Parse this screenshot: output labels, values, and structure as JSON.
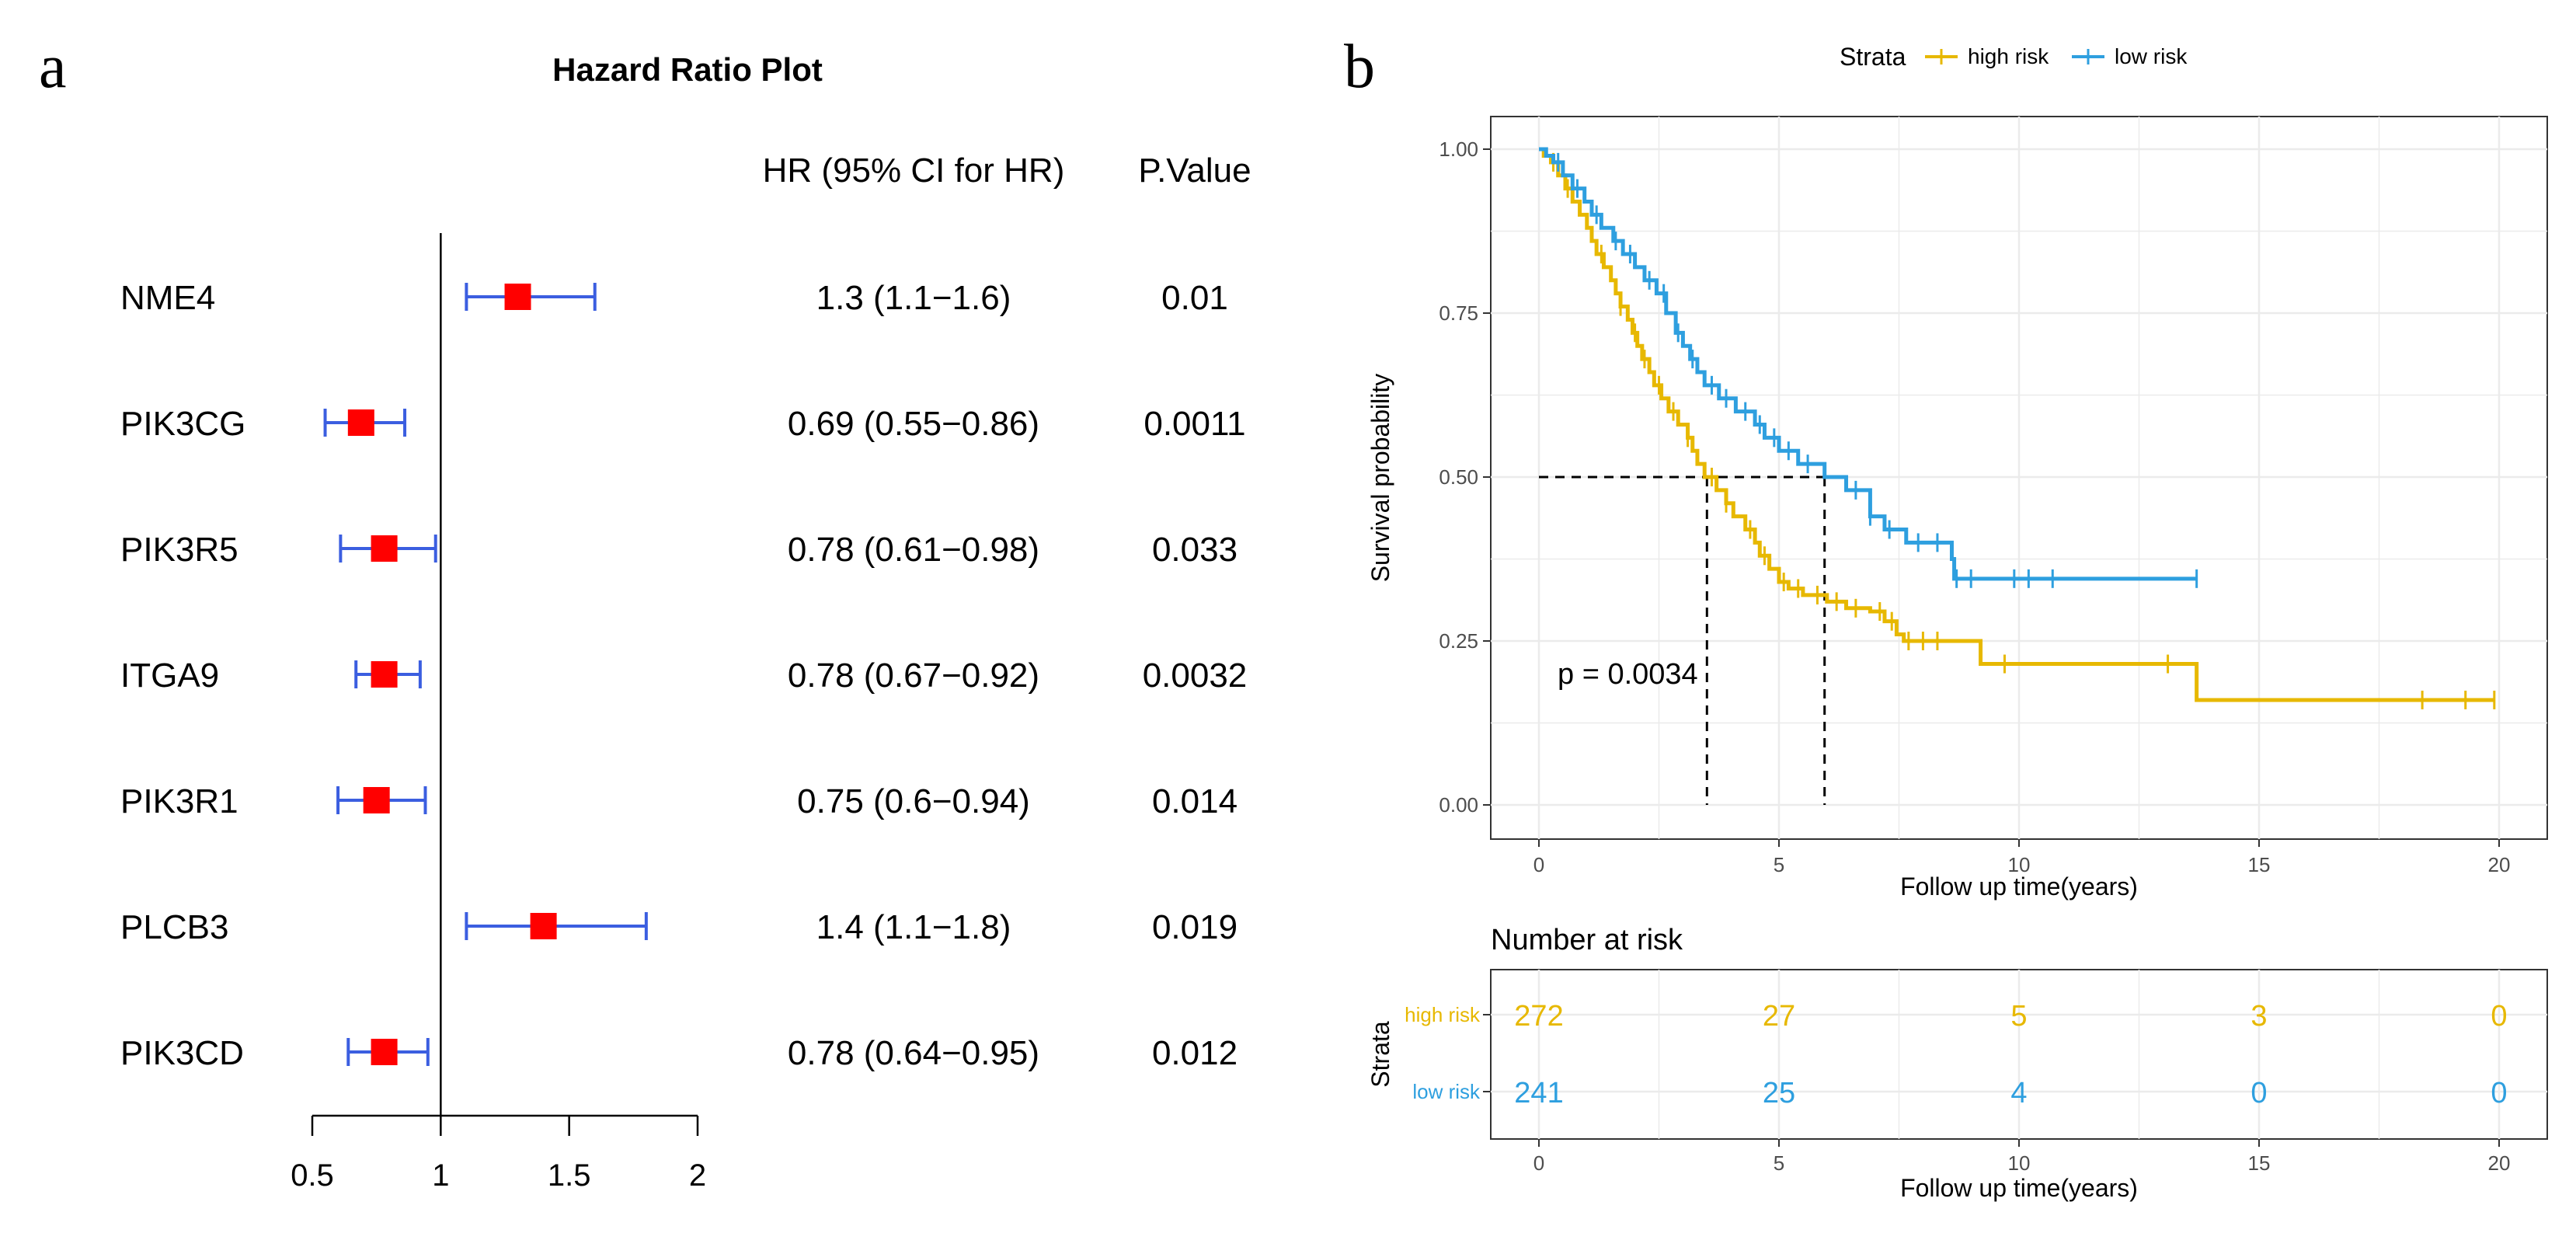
{
  "panel_a_label": "a",
  "panel_b_label": "b",
  "chart_data": [
    {
      "type": "forest",
      "title": "Hazard Ratio Plot",
      "header_hr": "HR (95% CI for HR)",
      "header_p": "P.Value",
      "xlim": [
        0.5,
        2
      ],
      "ticks": [
        0.5,
        1,
        1.5,
        2
      ],
      "tick_labels": [
        "0.5",
        "1",
        "1.5",
        "2"
      ],
      "reference_line": 1,
      "point_color": "#ff0000",
      "ci_color": "#3b5ee0",
      "rows": [
        {
          "gene": "NME4",
          "hr": 1.3,
          "lo": 1.1,
          "hi": 1.6,
          "hr_text": "1.3 (1.1−1.6)",
          "p": "0.01"
        },
        {
          "gene": "PIK3CG",
          "hr": 0.69,
          "lo": 0.55,
          "hi": 0.86,
          "hr_text": "0.69 (0.55−0.86)",
          "p": "0.0011"
        },
        {
          "gene": "PIK3R5",
          "hr": 0.78,
          "lo": 0.61,
          "hi": 0.98,
          "hr_text": "0.78 (0.61−0.98)",
          "p": "0.033"
        },
        {
          "gene": "ITGA9",
          "hr": 0.78,
          "lo": 0.67,
          "hi": 0.92,
          "hr_text": "0.78 (0.67−0.92)",
          "p": "0.0032"
        },
        {
          "gene": "PIK3R1",
          "hr": 0.75,
          "lo": 0.6,
          "hi": 0.94,
          "hr_text": "0.75 (0.6−0.94)",
          "p": "0.014"
        },
        {
          "gene": "PLCB3",
          "hr": 1.4,
          "lo": 1.1,
          "hi": 1.8,
          "hr_text": "1.4 (1.1−1.8)",
          "p": "0.019"
        },
        {
          "gene": "PIK3CD",
          "hr": 0.78,
          "lo": 0.64,
          "hi": 0.95,
          "hr_text": "0.78 (0.64−0.95)",
          "p": "0.012"
        }
      ]
    },
    {
      "type": "line",
      "subtype": "kaplan-meier",
      "legend_title": "Strata",
      "legend_position": "top",
      "xlabel": "Follow up time(years)",
      "ylabel": "Survival probability",
      "xlim": [
        0,
        20
      ],
      "ylim": [
        0,
        1
      ],
      "xticks": [
        0,
        5,
        10,
        15,
        20
      ],
      "xtick_labels": [
        "0",
        "5",
        "10",
        "15",
        "20"
      ],
      "yticks": [
        0,
        0.25,
        0.5,
        0.75,
        1
      ],
      "ytick_labels": [
        "0.00",
        "0.25",
        "0.50",
        "0.75",
        "1.00"
      ],
      "pvalue_text": "p = 0.0034",
      "median_survival": {
        "high risk": 3.5,
        "low risk": 5.95
      },
      "series": [
        {
          "name": "high risk",
          "color": "#e7b800",
          "steps": [
            [
              0,
              1.0
            ],
            [
              0.1,
              0.99
            ],
            [
              0.25,
              0.98
            ],
            [
              0.4,
              0.96
            ],
            [
              0.55,
              0.94
            ],
            [
              0.7,
              0.92
            ],
            [
              0.85,
              0.9
            ],
            [
              1.0,
              0.88
            ],
            [
              1.1,
              0.86
            ],
            [
              1.2,
              0.84
            ],
            [
              1.35,
              0.82
            ],
            [
              1.5,
              0.8
            ],
            [
              1.6,
              0.78
            ],
            [
              1.7,
              0.76
            ],
            [
              1.85,
              0.74
            ],
            [
              1.95,
              0.72
            ],
            [
              2.05,
              0.7
            ],
            [
              2.15,
              0.68
            ],
            [
              2.3,
              0.66
            ],
            [
              2.4,
              0.64
            ],
            [
              2.55,
              0.62
            ],
            [
              2.7,
              0.6
            ],
            [
              2.9,
              0.58
            ],
            [
              3.1,
              0.56
            ],
            [
              3.2,
              0.54
            ],
            [
              3.3,
              0.52
            ],
            [
              3.45,
              0.5
            ],
            [
              3.7,
              0.48
            ],
            [
              3.9,
              0.46
            ],
            [
              4.05,
              0.44
            ],
            [
              4.3,
              0.42
            ],
            [
              4.5,
              0.4
            ],
            [
              4.6,
              0.38
            ],
            [
              4.8,
              0.36
            ],
            [
              5.0,
              0.34
            ],
            [
              5.2,
              0.33
            ],
            [
              5.5,
              0.32
            ],
            [
              6.0,
              0.31
            ],
            [
              6.4,
              0.3
            ],
            [
              6.9,
              0.295
            ],
            [
              7.2,
              0.28
            ],
            [
              7.45,
              0.26
            ],
            [
              7.6,
              0.25
            ],
            [
              9.2,
              0.215
            ],
            [
              13.7,
              0.16
            ],
            [
              19.9,
              0.16
            ]
          ],
          "censor": [
            0.3,
            0.6,
            1.3,
            1.7,
            2.0,
            2.2,
            2.5,
            2.8,
            3.1,
            3.6,
            3.9,
            4.4,
            4.7,
            5.1,
            5.4,
            5.8,
            6.2,
            6.6,
            7.1,
            7.35,
            7.7,
            8.0,
            8.3,
            9.7,
            13.1,
            18.4,
            19.3,
            19.9
          ]
        },
        {
          "name": "low risk",
          "color": "#2e9fdf",
          "steps": [
            [
              0,
              1.0
            ],
            [
              0.15,
              0.99
            ],
            [
              0.3,
              0.98
            ],
            [
              0.5,
              0.96
            ],
            [
              0.7,
              0.94
            ],
            [
              0.95,
              0.92
            ],
            [
              1.1,
              0.9
            ],
            [
              1.3,
              0.88
            ],
            [
              1.55,
              0.86
            ],
            [
              1.75,
              0.84
            ],
            [
              2.0,
              0.82
            ],
            [
              2.2,
              0.8
            ],
            [
              2.45,
              0.78
            ],
            [
              2.65,
              0.75
            ],
            [
              2.85,
              0.72
            ],
            [
              3.0,
              0.7
            ],
            [
              3.15,
              0.68
            ],
            [
              3.3,
              0.66
            ],
            [
              3.45,
              0.64
            ],
            [
              3.75,
              0.62
            ],
            [
              4.1,
              0.6
            ],
            [
              4.5,
              0.58
            ],
            [
              4.7,
              0.56
            ],
            [
              5.0,
              0.54
            ],
            [
              5.4,
              0.52
            ],
            [
              5.95,
              0.5
            ],
            [
              6.4,
              0.48
            ],
            [
              6.9,
              0.44
            ],
            [
              7.2,
              0.42
            ],
            [
              7.65,
              0.4
            ],
            [
              8.6,
              0.375
            ],
            [
              8.65,
              0.345
            ],
            [
              13.7,
              0.345
            ]
          ],
          "censor": [
            0.4,
            0.8,
            1.2,
            1.6,
            1.9,
            2.3,
            2.6,
            2.9,
            3.2,
            3.6,
            3.9,
            4.3,
            4.6,
            4.9,
            5.2,
            5.6,
            6.6,
            6.9,
            7.3,
            7.9,
            8.3,
            8.7,
            9.0,
            9.9,
            10.2,
            10.7,
            13.7
          ]
        }
      ]
    },
    {
      "type": "table",
      "title": "Number at risk",
      "row_axis_label": "Strata",
      "xlabel": "Follow up time(years)",
      "xticks": [
        0,
        5,
        10,
        15,
        20
      ],
      "xtick_labels": [
        "0",
        "5",
        "10",
        "15",
        "20"
      ],
      "rows": [
        {
          "name": "high risk",
          "color": "#e7b800",
          "values": [
            "272",
            "27",
            "5",
            "3",
            "0"
          ]
        },
        {
          "name": "low risk",
          "color": "#2e9fdf",
          "values": [
            "241",
            "25",
            "4",
            "0",
            "0"
          ]
        }
      ]
    }
  ]
}
